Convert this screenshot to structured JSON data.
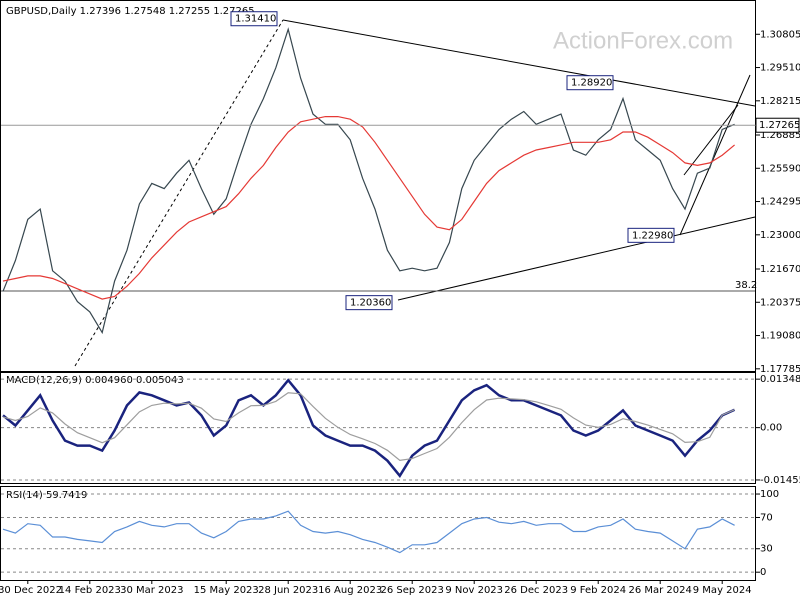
{
  "chart_data": [
    {
      "type": "line",
      "title": "GBPUSD,Daily  1.27396 1.27548 1.27255 1.27265",
      "watermark": "ActionForex.com",
      "fib_label": "38.2",
      "last_price": 1.27265,
      "key_levels": [
        {
          "value": 1.3141,
          "label": "1.31410"
        },
        {
          "value": 1.2892,
          "label": "1.28920"
        },
        {
          "value": 1.2298,
          "label": "1.22980"
        },
        {
          "value": 1.2036,
          "label": "1.20360"
        }
      ],
      "categories": [
        null,
        null,
        "30 Dec 2022",
        null,
        null,
        null,
        null,
        "14 Feb 2023",
        null,
        null,
        null,
        null,
        "30 Mar 2023",
        null,
        null,
        null,
        null,
        null,
        "15 May 2023",
        null,
        null,
        null,
        null,
        "28 Jun 2023",
        null,
        null,
        null,
        null,
        "16 Aug 2023",
        null,
        null,
        null,
        null,
        "26 Sep 2023",
        null,
        null,
        null,
        null,
        "9 Nov 2023",
        null,
        null,
        null,
        null,
        "26 Dec 2023",
        null,
        null,
        null,
        null,
        "9 Feb 2024",
        null,
        null,
        null,
        null,
        "26 Mar 2024",
        null,
        null,
        null,
        null,
        "9 May 2024",
        null
      ],
      "series": [
        {
          "color": "#37474f",
          "values": [
            1.208,
            1.22,
            1.236,
            1.24,
            1.216,
            1.212,
            1.204,
            1.2,
            1.192,
            1.212,
            1.224,
            1.242,
            1.25,
            1.248,
            1.254,
            1.259,
            1.248,
            1.238,
            1.244,
            1.259,
            1.273,
            1.283,
            1.295,
            1.31,
            1.291,
            1.277,
            1.273,
            1.273,
            1.267,
            1.252,
            1.24,
            1.224,
            1.216,
            1.217,
            1.216,
            1.217,
            1.227,
            1.248,
            1.259,
            1.265,
            1.271,
            1.275,
            1.278,
            1.273,
            1.275,
            1.277,
            1.263,
            1.261,
            1.267,
            1.271,
            1.283,
            1.267,
            1.263,
            1.259,
            1.248,
            1.24,
            1.254,
            1.256,
            1.271,
            1.273
          ]
        },
        {
          "color": "#e53935",
          "values": [
            1.212,
            1.213,
            1.214,
            1.214,
            1.213,
            1.211,
            1.209,
            1.207,
            1.205,
            1.206,
            1.21,
            1.215,
            1.221,
            1.226,
            1.231,
            1.235,
            1.237,
            1.239,
            1.241,
            1.246,
            1.252,
            1.257,
            1.264,
            1.27,
            1.274,
            1.275,
            1.276,
            1.276,
            1.275,
            1.272,
            1.266,
            1.259,
            1.252,
            1.245,
            1.238,
            1.233,
            1.232,
            1.236,
            1.243,
            1.25,
            1.255,
            1.258,
            1.261,
            1.263,
            1.264,
            1.265,
            1.266,
            1.266,
            1.266,
            1.267,
            1.27,
            1.27,
            1.268,
            1.265,
            1.262,
            1.258,
            1.257,
            1.258,
            1.261,
            1.265
          ]
        }
      ],
      "ylim": [
        1.177,
        1.321
      ],
      "yticks": [
        1.30805,
        {
          "value": 1.2951,
          "label": "1.29510"
        },
        1.28215,
        1.26885,
        {
          "value": 1.2559,
          "label": "1.25590"
        },
        1.24295,
        {
          "value": 1.23,
          "label": "1.23000"
        },
        {
          "value": 1.2167,
          "label": "1.21670"
        },
        1.20375,
        {
          "value": 1.1908,
          "label": "1.19080"
        },
        1.17785
      ],
      "grid": false
    },
    {
      "type": "line",
      "title": "MACD(12,26,9) 0.004960 0.005043",
      "series": [
        {
          "color": "#1a237e",
          "values": [
            0.0034,
            0.0006,
            0.0048,
            0.009,
            0.002,
            -0.0036,
            -0.005,
            -0.005,
            -0.0064,
            -0.0008,
            0.0062,
            0.0098,
            0.009,
            0.0076,
            0.0062,
            0.007,
            0.0034,
            -0.0022,
            0.0006,
            0.0076,
            0.009,
            0.0062,
            0.009,
            0.0132,
            0.009,
            0.0006,
            -0.0022,
            -0.0036,
            -0.005,
            -0.005,
            -0.0064,
            -0.0092,
            -0.0134,
            -0.0078,
            -0.005,
            -0.0036,
            0.002,
            0.0076,
            0.0104,
            0.0118,
            0.009,
            0.0076,
            0.0076,
            0.0062,
            0.0048,
            0.0034,
            -0.0008,
            -0.0022,
            -0.0008,
            0.002,
            0.0048,
            0.0006,
            -0.0008,
            -0.0022,
            -0.0036,
            -0.0078,
            -0.0036,
            -0.0008,
            0.0034,
            0.005
          ]
        },
        {
          "color": "#9e9e9e",
          "values": [
            0.003,
            0.002,
            0.0031,
            0.0055,
            0.0041,
            0.001,
            -0.0014,
            -0.0028,
            -0.0042,
            -0.0028,
            0.0008,
            0.0044,
            0.0062,
            0.0068,
            0.0066,
            0.0068,
            0.0054,
            0.0024,
            0.0017,
            0.0041,
            0.0061,
            0.0062,
            0.0073,
            0.0097,
            0.0094,
            0.0059,
            0.0026,
            0.0001,
            -0.0019,
            -0.0031,
            -0.0044,
            -0.0063,
            -0.0091,
            -0.0086,
            -0.0072,
            -0.0058,
            -0.0027,
            0.0014,
            0.005,
            0.0077,
            0.0082,
            0.008,
            0.0078,
            0.0072,
            0.0062,
            0.0051,
            0.0027,
            0.0007,
            0.0001,
            0.0009,
            0.0025,
            0.0017,
            0.0007,
            -0.0005,
            -0.0017,
            -0.0041,
            -0.0039,
            -0.0027,
            0.0035,
            0.005
          ]
        }
      ],
      "ylim": [
        -0.0154,
        0.0152
      ],
      "yticks": [
        0.013489,
        {
          "value": 0,
          "label": "0.00"
        },
        -0.014554
      ],
      "grid": true
    },
    {
      "type": "line",
      "title": "RSI(14) 59.7419",
      "series": [
        {
          "color": "#5b8fd6",
          "values": [
            55,
            50,
            62,
            60,
            45,
            45,
            42,
            40,
            38,
            52,
            58,
            65,
            60,
            58,
            62,
            62,
            50,
            44,
            52,
            65,
            68,
            68,
            72,
            78,
            60,
            52,
            50,
            52,
            48,
            42,
            38,
            32,
            25,
            35,
            35,
            38,
            50,
            62,
            68,
            70,
            64,
            62,
            65,
            60,
            62,
            62,
            52,
            52,
            58,
            60,
            68,
            55,
            52,
            50,
            40,
            30,
            55,
            58,
            68,
            60
          ]
        }
      ],
      "ylim": [
        -10,
        109
      ],
      "yticks": [
        100,
        70,
        30,
        0
      ],
      "grid": true
    }
  ]
}
